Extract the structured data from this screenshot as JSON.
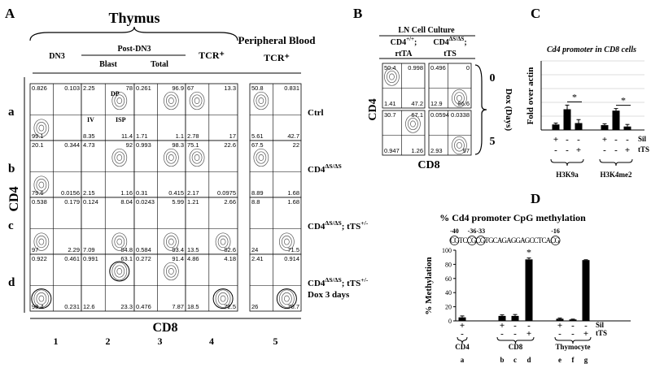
{
  "panel_letters": [
    "A",
    "B",
    "C",
    "D"
  ],
  "panel_a": {
    "title": "Thymus",
    "subtitle": "Peripheral Blood",
    "headers": [
      "DN3",
      "Post-DN3",
      "Blast",
      "Total",
      "TCR⁺",
      "TCR⁺"
    ],
    "gates": [
      "DP",
      "IV",
      "ISP"
    ],
    "y_axis": "CD4",
    "x_axis": "CD8",
    "column_numbers": [
      "1",
      "2",
      "3",
      "4",
      "5"
    ],
    "rows": [
      {
        "letter": "a",
        "genotype": [
          {
            "text": "Ctrl"
          }
        ],
        "plots": [
          {
            "tl": "0.826",
            "tr": "0.103",
            "bl": "99.1"
          },
          {
            "tl": "2.25",
            "tr": "78",
            "bl": "8.35",
            "br": "11.4"
          },
          {
            "tl": "0.261",
            "tr": "96.9",
            "bl": "1.71",
            "br": "1.1"
          },
          {
            "tl": "67",
            "tr": "13.3",
            "bl": "2.78",
            "br": "17"
          },
          {
            "tl": "50.8",
            "tr": "0.831",
            "bl": "5.61",
            "br": "42.7"
          }
        ]
      },
      {
        "letter": "b",
        "genotype": [
          {
            "text": "CD4"
          },
          {
            "sup": "ΔS/ΔS"
          }
        ],
        "plots": [
          {
            "tl": "20.1",
            "tr": "0.344",
            "bl": "79.6",
            "br": "0.0156"
          },
          {
            "tl": "4.73",
            "tr": "92",
            "bl": "2.15",
            "br": "1.16"
          },
          {
            "tl": "0.993",
            "tr": "98.3",
            "bl": "0.31",
            "br": "0.415"
          },
          {
            "tl": "75.1",
            "tr": "22.6",
            "bl": "2.17",
            "br": "0.0975"
          },
          {
            "tl": "67.5",
            "tr": "22",
            "bl": "8.89",
            "br": "1.68"
          }
        ]
      },
      {
        "letter": "c",
        "genotype": [
          {
            "text": "CD4"
          },
          {
            "sup": "ΔS/ΔS"
          },
          {
            "text": "; tTS"
          },
          {
            "sup": "+/-"
          }
        ],
        "plots": [
          {
            "tl": "0.538",
            "tr": "0.179",
            "bl": "97",
            "br": "2.29"
          },
          {
            "tl": "0.124",
            "tr": "8.04",
            "bl": "7.09",
            "br": "84.8"
          },
          {
            "tl": "0.0243",
            "tr": "5.99",
            "bl": "0.584",
            "br": "93.4"
          },
          {
            "tl": "1.21",
            "tr": "2.66",
            "bl": "13.5",
            "br": "82.6"
          },
          {
            "tl": "8.8",
            "tr": "1.68",
            "bl": "24",
            "br": "71.5"
          }
        ]
      },
      {
        "letter": "d",
        "genotype": [
          {
            "text": "CD4"
          },
          {
            "sup": "ΔS/ΔS"
          },
          {
            "text": "; tTS"
          },
          {
            "sup": "+/-"
          }
        ],
        "note": "Dox 3 days",
        "plots": [
          {
            "tl": "0.922",
            "tr": "0.461",
            "bl": "98.4",
            "br": "0.231"
          },
          {
            "tl": "0.991",
            "tr": "63.1",
            "bl": "12.6",
            "br": "23.3"
          },
          {
            "tl": "0.272",
            "tr": "91.4",
            "bl": "0.476",
            "br": "7.87"
          },
          {
            "tl": "4.86",
            "tr": "4.18",
            "bl": "18.5",
            "br": "72.5"
          },
          {
            "tl": "2.41",
            "tr": "0.914",
            "bl": "26",
            "br": "70.7"
          }
        ]
      }
    ]
  },
  "panel_b": {
    "title": "LN Cell Culture",
    "y_axis": "CD4",
    "x_axis": "CD8",
    "rows": [
      "0",
      "5"
    ],
    "row_title": "Dox (Days)",
    "columns": [
      {
        "genotype": [
          {
            "text": "CD4"
          },
          {
            "sup": "+/+"
          },
          {
            "text": ";"
          }
        ],
        "label": "rtTA",
        "plots": [
          {
            "tl": "50.4",
            "tr": "0.998",
            "bl": "1.41",
            "br": "47.2"
          },
          {
            "tl": "30.7",
            "tr": "67.1",
            "bl": "0.947",
            "br": "1.26"
          }
        ]
      },
      {
        "genotype": [
          {
            "text": "CD4"
          },
          {
            "sup": "ΔS/ΔS"
          },
          {
            "text": ";"
          }
        ],
        "label": "tTS",
        "plots": [
          {
            "tl": "0.496",
            "tr": "0",
            "bl": "12.9",
            "br": "86.6"
          },
          {
            "tl": "0.0594",
            "tr": "0.0338",
            "bl": "2.93",
            "br": "97"
          }
        ]
      }
    ]
  },
  "chart_data": [
    {
      "type": "bar",
      "title": "Cd4 promoter in CD8 cells",
      "y_label": "Fold over actin",
      "groups": [
        "H3K9a",
        "H3K4me2"
      ],
      "values": [
        0.08,
        0.3,
        0.1,
        0.07,
        0.28,
        0.05
      ],
      "errors": [
        0.02,
        0.06,
        0.05,
        0.02,
        0.03,
        0.03
      ],
      "color": "#000000",
      "ylim": [
        0,
        1
      ],
      "grid_lines": [
        0.2,
        0.4,
        0.6,
        0.8,
        1
      ],
      "significance": [
        "*",
        "*"
      ],
      "conditions": [
        {
          "name": "Sil",
          "signs": [
            "+",
            "-",
            "-",
            "+",
            "-",
            "-"
          ]
        },
        {
          "name": "tTS",
          "signs": [
            "-",
            "-",
            "+",
            "-",
            "-",
            "+"
          ]
        }
      ]
    },
    {
      "type": "bar",
      "title": "% Cd4 promoter CpG methylation",
      "sequence": "CGTCCGCGTGCAGAGGAGCCTCACG",
      "cpg_sites": [
        "-40",
        "-36",
        "-33",
        "-16"
      ],
      "y_label": "% Methylation",
      "categories": [
        "a",
        "b",
        "c",
        "d",
        "e",
        "f",
        "g"
      ],
      "values": [
        5,
        7,
        7,
        87,
        3,
        2,
        86
      ],
      "errors": [
        2,
        1.5,
        2,
        2,
        1,
        0.5,
        0.5
      ],
      "color": "#000000",
      "ylim": [
        0,
        100
      ],
      "yticks": [
        0,
        20,
        40,
        60,
        80,
        100
      ],
      "significance": [
        null,
        null,
        null,
        "*",
        null,
        null,
        null
      ],
      "groups": [
        "CD4",
        "CD8",
        "Thymocyte"
      ],
      "conditions": [
        {
          "name": "Sil",
          "signs": [
            "+",
            "+",
            "-",
            "-",
            "+",
            "-",
            "-"
          ]
        },
        {
          "name": "tTS",
          "signs": [
            "-",
            "-",
            "-",
            "+",
            "-",
            "-",
            "+"
          ]
        }
      ]
    }
  ]
}
